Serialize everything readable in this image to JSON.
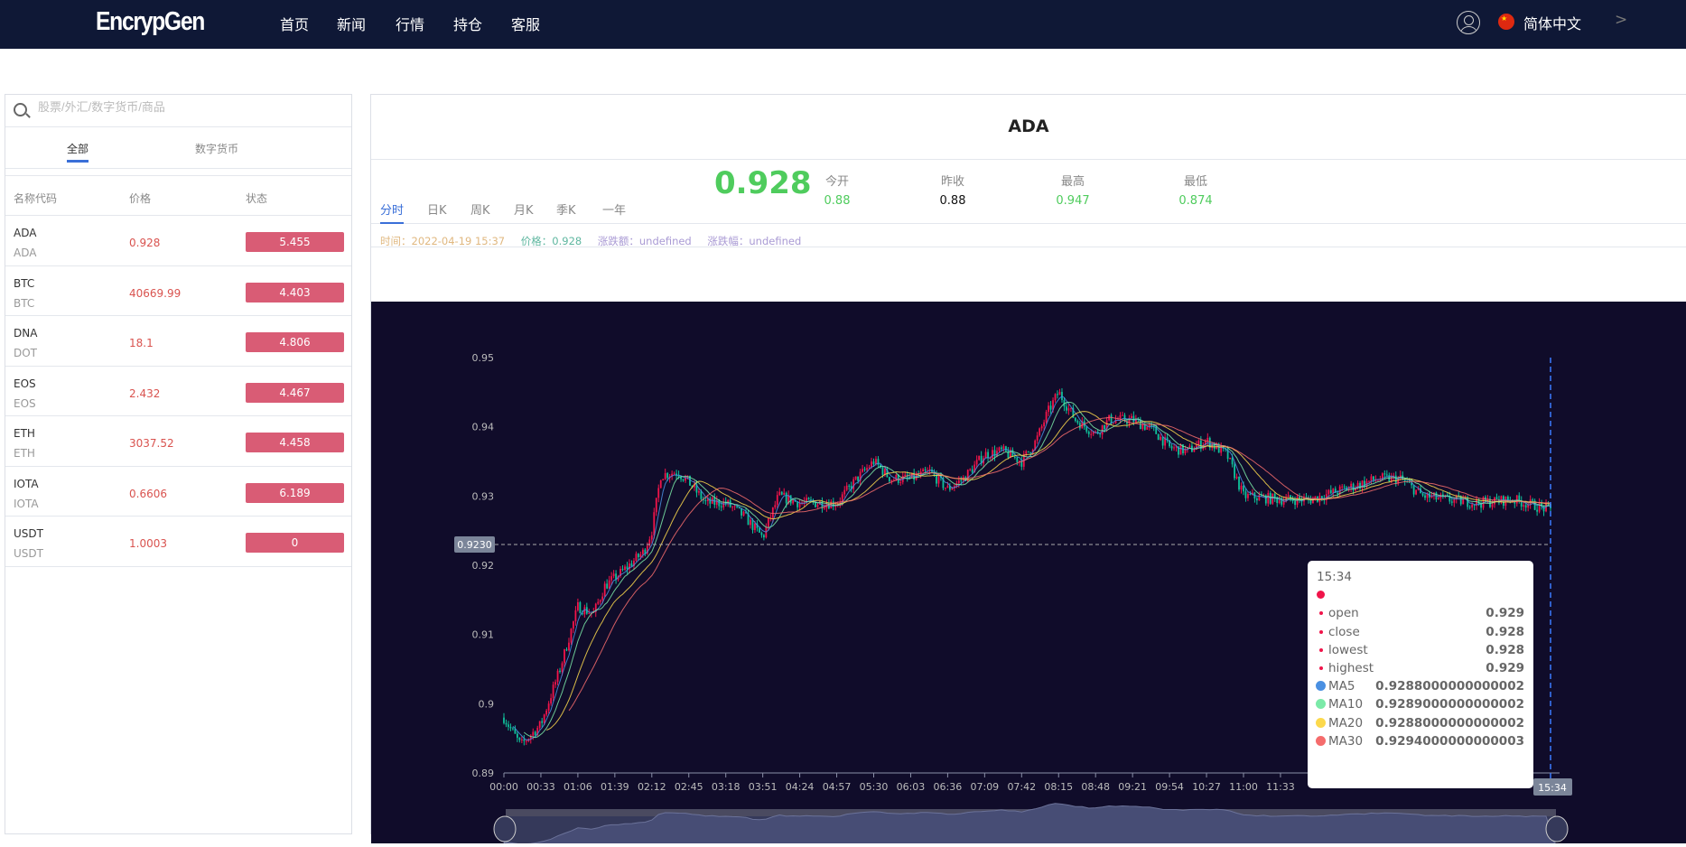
{
  "nav": {
    "logo": "EncrypGen",
    "items": [
      "首页",
      "新闻",
      "行情",
      "持仓",
      "客服"
    ],
    "language": "简体中文",
    "chevron": ">"
  },
  "sidebar": {
    "search_placeholder": "股票/外汇/数字货币/商品",
    "tabs": [
      {
        "label": "全部",
        "active": true
      },
      {
        "label": "数字货币",
        "active": false
      }
    ],
    "columns": [
      "名称代码",
      "价格",
      "状态"
    ],
    "rows": [
      {
        "name": "ADA",
        "code": "ADA",
        "price": "0.928",
        "change": "5.455"
      },
      {
        "name": "BTC",
        "code": "BTC",
        "price": "40669.99",
        "change": "4.403"
      },
      {
        "name": "DNA",
        "code": "DOT",
        "price": "18.1",
        "change": "4.806"
      },
      {
        "name": "EOS",
        "code": "EOS",
        "price": "2.432",
        "change": "4.467"
      },
      {
        "name": "ETH",
        "code": "ETH",
        "price": "3037.52",
        "change": "4.458"
      },
      {
        "name": "IOTA",
        "code": "IOTA",
        "price": "0.6606",
        "change": "6.189"
      },
      {
        "name": "USDT",
        "code": "USDT",
        "price": "1.0003",
        "change": "0"
      }
    ]
  },
  "main": {
    "symbol": "ADA",
    "price": "0.928",
    "stats": [
      {
        "label": "今开",
        "value": "0.88",
        "color": "#4fcc5d"
      },
      {
        "label": "昨收",
        "value": "0.88",
        "color": "#111111"
      },
      {
        "label": "最高",
        "value": "0.947",
        "color": "#4fcc5d"
      },
      {
        "label": "最低",
        "value": "0.874",
        "color": "#4fcc5d"
      }
    ],
    "period_tabs": [
      {
        "label": "分时",
        "active": true
      },
      {
        "label": "日K"
      },
      {
        "label": "周K"
      },
      {
        "label": "月K"
      },
      {
        "label": "季K"
      },
      {
        "label": "一年"
      }
    ],
    "info": {
      "time": "时间：2022-04-19 15:37",
      "price": "价格：0.928",
      "change_amount": "涨跌额：undefined",
      "change_pct": "涨跌幅：undefined"
    },
    "info_colors": {
      "time": "#e0b880",
      "price": "#5fb7a0",
      "change": "#a99ad4"
    }
  },
  "tooltip": {
    "time": "15:34",
    "rows": [
      {
        "k": "open",
        "v": "0.929"
      },
      {
        "k": "close",
        "v": "0.928"
      },
      {
        "k": "lowest",
        "v": "0.928"
      },
      {
        "k": "highest",
        "v": "0.929"
      }
    ],
    "ma": [
      {
        "k": "MA5",
        "v": "0.9288000000000002",
        "color": "#4a90e2"
      },
      {
        "k": "MA10",
        "v": "0.9289000000000002",
        "color": "#7beaa8"
      },
      {
        "k": "MA20",
        "v": "0.9288000000000002",
        "color": "#fcd94c"
      },
      {
        "k": "MA30",
        "v": "0.9294000000000003",
        "color": "#f56c6c"
      }
    ]
  },
  "chart_data": {
    "type": "candlestick",
    "ylim": [
      0.89,
      0.95
    ],
    "yticks": [
      "0.95",
      "0.94",
      "0.93",
      "0.92",
      "0.91",
      "0.9",
      "0.89"
    ],
    "xticks": [
      "00:00",
      "00:33",
      "01:06",
      "01:39",
      "02:12",
      "02:45",
      "03:18",
      "03:51",
      "04:24",
      "04:57",
      "05:30",
      "06:03",
      "06:36",
      "07:09",
      "07:42",
      "08:15",
      "08:48",
      "09:21",
      "09:54",
      "10:27",
      "11:00",
      "11:33"
    ],
    "crosshair_y_label": "0.9230",
    "crosshair_x_label": "15:34",
    "up_color": "#f0144a",
    "down_color": "#0fc29b",
    "approx_close": [
      [
        "00:00",
        0.898
      ],
      [
        "00:15",
        0.894
      ],
      [
        "00:33",
        0.897
      ],
      [
        "00:50",
        0.905
      ],
      [
        "01:06",
        0.914
      ],
      [
        "01:20",
        0.913
      ],
      [
        "01:30",
        0.917
      ],
      [
        "01:45",
        0.919
      ],
      [
        "02:05",
        0.922
      ],
      [
        "02:12",
        0.925
      ],
      [
        "02:20",
        0.933
      ],
      [
        "02:35",
        0.9335
      ],
      [
        "02:45",
        0.932
      ],
      [
        "03:00",
        0.929
      ],
      [
        "03:18",
        0.929
      ],
      [
        "03:35",
        0.927
      ],
      [
        "03:51",
        0.924
      ],
      [
        "04:05",
        0.93
      ],
      [
        "04:24",
        0.929
      ],
      [
        "04:57",
        0.929
      ],
      [
        "05:15",
        0.9325
      ],
      [
        "05:30",
        0.935
      ],
      [
        "05:45",
        0.9325
      ],
      [
        "06:03",
        0.9325
      ],
      [
        "06:20",
        0.9335
      ],
      [
        "06:36",
        0.931
      ],
      [
        "06:50",
        0.9325
      ],
      [
        "07:09",
        0.936
      ],
      [
        "07:25",
        0.9365
      ],
      [
        "07:42",
        0.935
      ],
      [
        "07:55",
        0.938
      ],
      [
        "08:05",
        0.942
      ],
      [
        "08:15",
        0.945
      ],
      [
        "08:30",
        0.941
      ],
      [
        "08:48",
        0.939
      ],
      [
        "09:00",
        0.941
      ],
      [
        "09:21",
        0.941
      ],
      [
        "09:40",
        0.9395
      ],
      [
        "09:54",
        0.937
      ],
      [
        "10:10",
        0.9365
      ],
      [
        "10:27",
        0.938
      ],
      [
        "10:45",
        0.936
      ],
      [
        "11:00",
        0.93
      ],
      [
        "11:33",
        0.9295
      ],
      [
        "12:00",
        0.9295
      ],
      [
        "12:30",
        0.931
      ],
      [
        "13:00",
        0.9325
      ],
      [
        "13:20",
        0.9325
      ],
      [
        "13:40",
        0.93
      ],
      [
        "14:00",
        0.9295
      ],
      [
        "14:30",
        0.929
      ],
      [
        "15:00",
        0.9295
      ],
      [
        "15:34",
        0.928
      ]
    ]
  }
}
